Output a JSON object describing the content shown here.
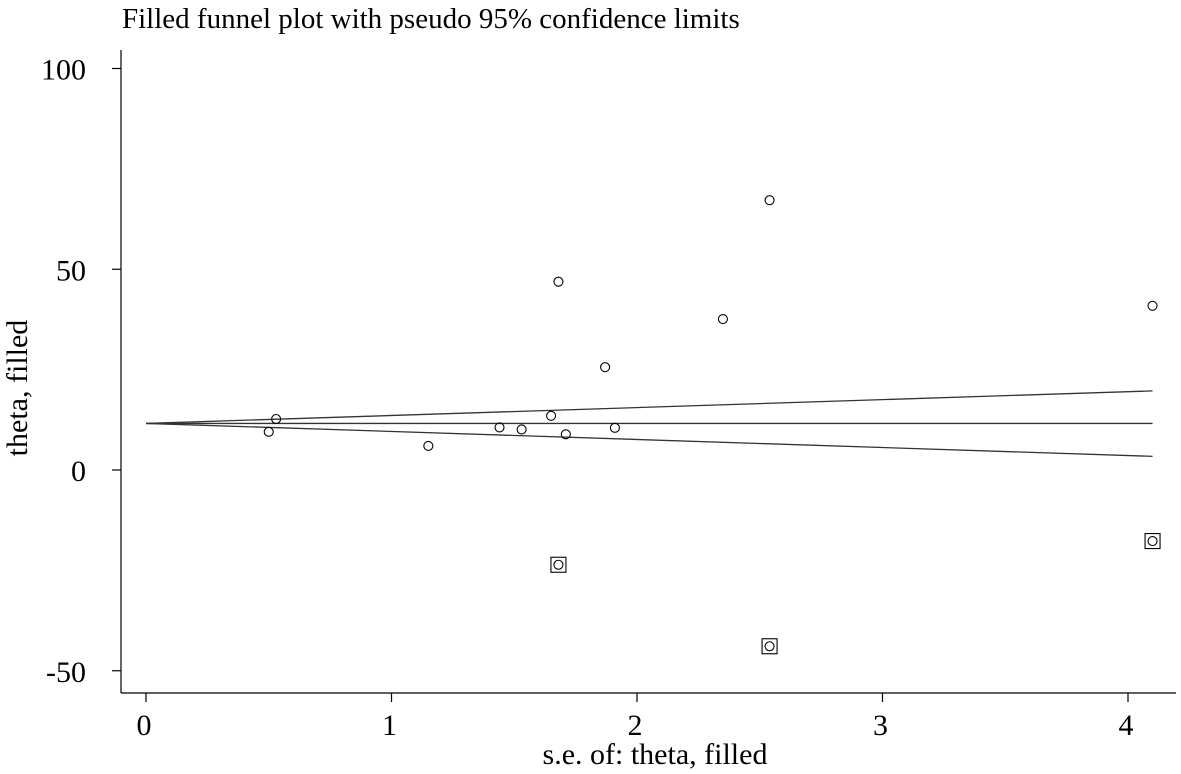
{
  "chart_data": {
    "type": "scatter",
    "title": "Filled funnel plot with pseudo 95% confidence limits",
    "xlabel": "s.e. of: theta, filled",
    "ylabel": "theta, filled",
    "xlim": [
      -0.1,
      4.2
    ],
    "ylim": [
      -55,
      103
    ],
    "x_ticks": [
      0,
      1,
      2,
      3,
      4
    ],
    "x_tick_labels": [
      "0",
      "1",
      "2",
      "3",
      "4"
    ],
    "y_ticks": [
      -50,
      0,
      50,
      100
    ],
    "y_tick_labels": [
      "-50",
      "0",
      "50",
      "100"
    ],
    "grid": false,
    "pooled_estimate": 11.6,
    "se_max": 4.1,
    "funnel_upper_end": 19.7,
    "funnel_lower_end": 3.4,
    "series": [
      {
        "marker": "circle",
        "points": [
          {
            "x": 0.5,
            "y": 9.5
          },
          {
            "x": 0.53,
            "y": 12.7
          },
          {
            "x": 1.15,
            "y": 6.0
          },
          {
            "x": 1.44,
            "y": 10.6
          },
          {
            "x": 1.53,
            "y": 10.1
          },
          {
            "x": 1.65,
            "y": 13.5
          },
          {
            "x": 1.68,
            "y": 46.9
          },
          {
            "x": 1.71,
            "y": 8.9
          },
          {
            "x": 1.87,
            "y": 25.6
          },
          {
            "x": 1.91,
            "y": 10.5
          },
          {
            "x": 2.35,
            "y": 37.6
          },
          {
            "x": 2.54,
            "y": 67.2
          },
          {
            "x": 4.1,
            "y": 40.9
          },
          {
            "x": 1.68,
            "y": -23.6
          },
          {
            "x": 2.54,
            "y": -43.9
          },
          {
            "x": 4.1,
            "y": -17.7
          }
        ]
      },
      {
        "marker": "square",
        "points": [
          {
            "x": 1.68,
            "y": -23.6
          },
          {
            "x": 2.54,
            "y": -43.9
          },
          {
            "x": 4.1,
            "y": -17.7
          }
        ]
      }
    ]
  }
}
